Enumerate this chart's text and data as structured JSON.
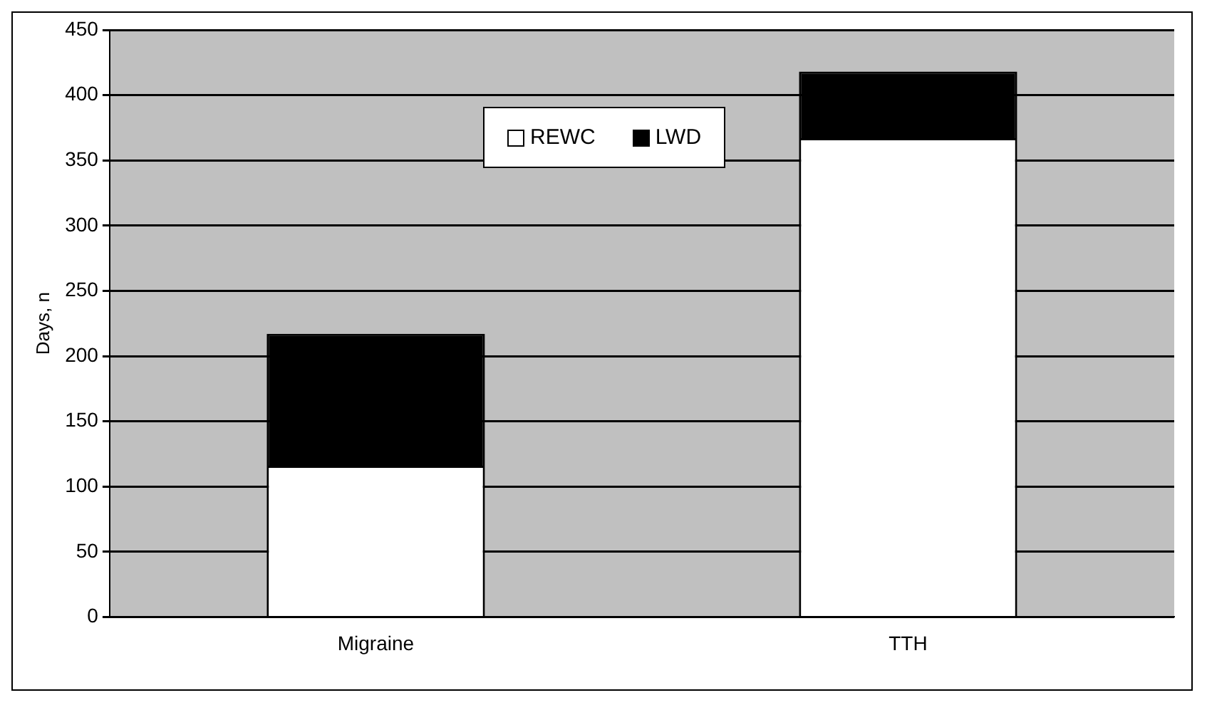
{
  "chart_data": {
    "type": "bar",
    "ylabel": "Days, n",
    "categories": [
      "Migraine",
      "TTH"
    ],
    "stacked": true,
    "series": [
      {
        "name": "REWC",
        "color": "#ffffff",
        "values": [
          116,
          367
        ]
      },
      {
        "name": "LWD",
        "color": "#000000",
        "values": [
          101,
          51
        ]
      }
    ],
    "ylim": [
      0,
      450
    ],
    "yticks": [
      0,
      50,
      100,
      150,
      200,
      250,
      300,
      350,
      400,
      450
    ],
    "grid": "y",
    "legend": "top"
  }
}
